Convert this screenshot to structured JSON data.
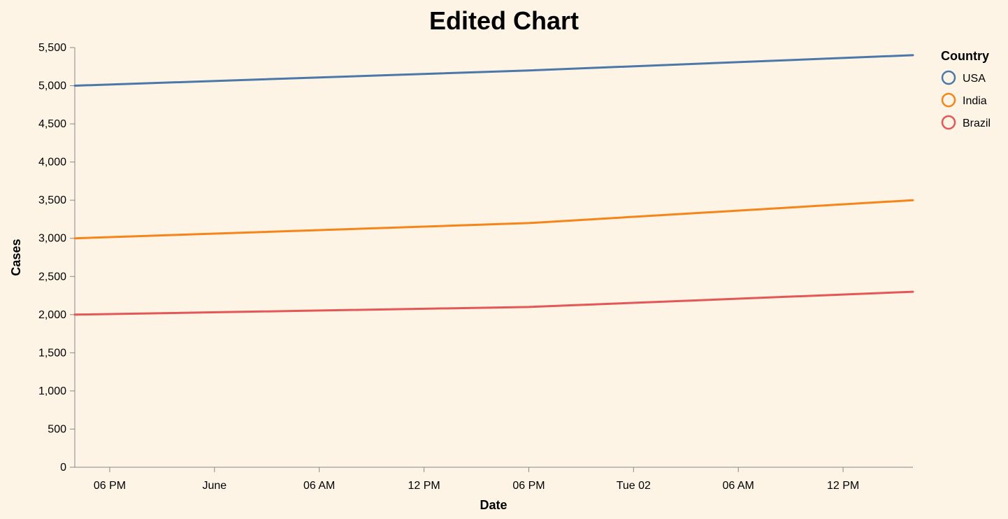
{
  "chart_data": {
    "type": "line",
    "title": "Edited Chart",
    "xlabel": "Date",
    "ylabel": "Cases",
    "ylim": [
      0,
      5500
    ],
    "yticks": [
      0,
      500,
      1000,
      1500,
      2000,
      2500,
      3000,
      3500,
      4000,
      4500,
      5000,
      5500
    ],
    "xlim": [
      "2020-05-31T16:00",
      "2020-06-02T16:00"
    ],
    "xticks": [
      {
        "t": "2020-05-31T18:00",
        "label": "06 PM"
      },
      {
        "t": "2020-06-01T00:00",
        "label": "June"
      },
      {
        "t": "2020-06-01T06:00",
        "label": "06 AM"
      },
      {
        "t": "2020-06-01T12:00",
        "label": "12 PM"
      },
      {
        "t": "2020-06-01T18:00",
        "label": "06 PM"
      },
      {
        "t": "2020-06-02T00:00",
        "label": "Tue 02"
      },
      {
        "t": "2020-06-02T06:00",
        "label": "06 AM"
      },
      {
        "t": "2020-06-02T12:00",
        "label": "12 PM"
      }
    ],
    "x": [
      "2020-05-31T16:00",
      "2020-06-01T18:00",
      "2020-06-02T16:00"
    ],
    "series": [
      {
        "name": "USA",
        "color": "#4c78a8",
        "values": [
          5000,
          5200,
          5400
        ]
      },
      {
        "name": "India",
        "color": "#f58518",
        "values": [
          3000,
          3200,
          3500
        ]
      },
      {
        "name": "Brazil",
        "color": "#e45756",
        "values": [
          2000,
          2100,
          2300
        ]
      }
    ],
    "legend": {
      "title": "Country",
      "position": "top-right"
    },
    "grid": false
  }
}
